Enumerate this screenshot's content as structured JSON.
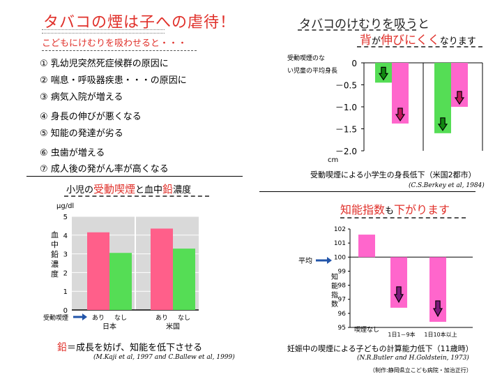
{
  "left": {
    "title": "タバコの煙は子への虐待！",
    "subtitle": "こどもにけむりを吸わせると・・・",
    "items": [
      "① 乳幼児突然死症候群の原因に",
      "② 喘息・呼吸器疾患・・・の原因に",
      "③ 病気入院が増える",
      "④ 身長の伸びが悪くなる",
      "⑤ 知能の発達が劣る",
      "⑥ 虫歯が増える",
      "⑦ 成人後の発がん率が高くなる"
    ]
  },
  "lead": {
    "title_pre": "小児の",
    "title_red": "受動喫煙",
    "title_mid": "と血中",
    "title_red2": "鉛",
    "title_post": "濃度",
    "conclusion_red": "鉛",
    "conclusion": "＝成長を妨げ、知能を低下させる",
    "citation": "(M.Kaji et al, 1997 and C.Ballew et al, 1999)"
  },
  "height": {
    "title1": "タバコのけむりを吸うと",
    "title2_red1": "背",
    "title2_mid": "が",
    "title2_red2": "伸びにくく",
    "title2_post": "なります",
    "caption": "受動喫煙による小学生の身長低下（米国2都市）",
    "citation": "(C.S.Berkey et al, 1984)"
  },
  "iq": {
    "title_red1": "知能指数",
    "title_mid": "も",
    "title_red2": "下がります",
    "caption": "妊娠中の喫煙による子どもの計算能力低下（11歳時）",
    "citation": "(N.R.Butler and H.Goldstein, 1973)",
    "credit": "（制作:静岡県立こども病院・加治正行）"
  },
  "colors": {
    "red": "#e0302a",
    "pink": "#ff66cc",
    "green": "#55dd55",
    "lead_pink": "#ff5f8a",
    "dark_green": "#118811",
    "purple": "#7a1a7a"
  },
  "chart_data": [
    {
      "type": "bar",
      "ylabel": "血中鉛濃度",
      "yunit": "μg/dl",
      "ylim": [
        0,
        5
      ],
      "yticks": [
        "0",
        "1",
        "2",
        "3",
        "4",
        "5"
      ],
      "passive_label": "受動喫煙",
      "groups": [
        {
          "name": "日本",
          "labels": [
            "あり",
            "なし"
          ],
          "values": [
            4.15,
            3.05
          ]
        },
        {
          "name": "米国",
          "labels": [
            "あり",
            "なし"
          ],
          "values": [
            4.35,
            3.28
          ]
        }
      ]
    },
    {
      "type": "bar",
      "ylabel": "受動喫煙のない児童の平均身長",
      "yunit": "cm",
      "ylim": [
        -2.0,
        0
      ],
      "yticks": [
        "0",
        "－0.5",
        "－1.0",
        "－1.5",
        "－2.0"
      ],
      "groups": [
        {
          "values": [
            -0.45,
            -1.38
          ]
        },
        {
          "values": [
            -1.6,
            -1.0
          ]
        }
      ]
    },
    {
      "type": "bar",
      "ylabel": "知能指数",
      "mean_label": "平均",
      "ylim": [
        95,
        102
      ],
      "yticks": [
        "95",
        "96",
        "97",
        "98",
        "99",
        "100",
        "101",
        "102"
      ],
      "categories": [
        "喫煙なし",
        "1日1－9本",
        "1日10本以上"
      ],
      "values": [
        101.6,
        96.4,
        95.4
      ]
    }
  ]
}
